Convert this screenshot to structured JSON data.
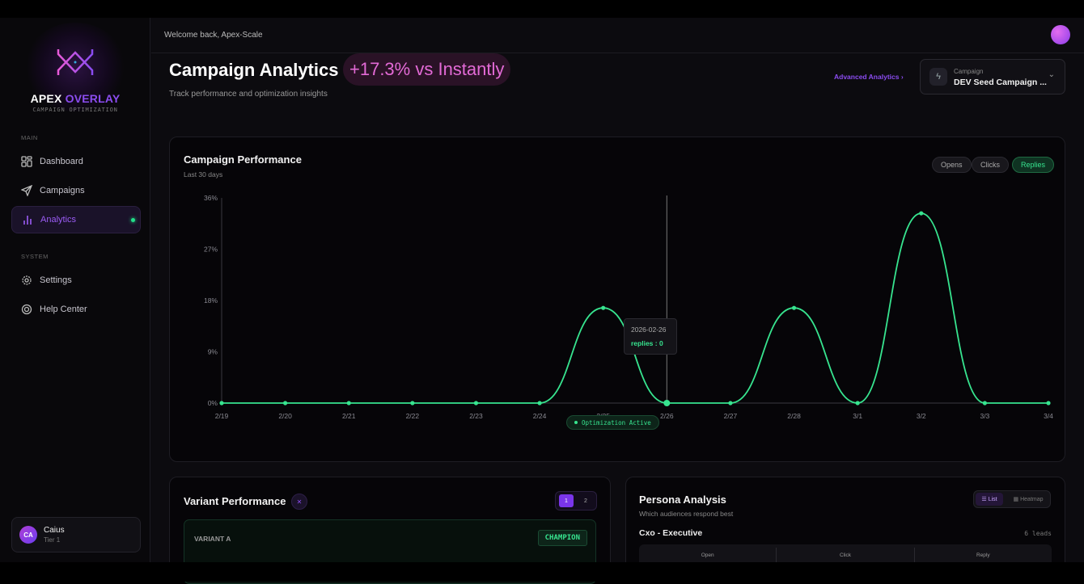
{
  "sidebar": {
    "brand_a": "APEX",
    "brand_b": "OVERLAY",
    "tagline": "CAMPAIGN OPTIMIZATION",
    "sec_main": "MAIN",
    "sec_system": "SYSTEM",
    "items": [
      {
        "label": "Dashboard"
      },
      {
        "label": "Campaigns"
      },
      {
        "label": "Analytics"
      },
      {
        "label": "Settings"
      },
      {
        "label": "Help Center"
      }
    ],
    "user": {
      "initials": "CA",
      "name": "Caius",
      "tier": "Tier 1"
    }
  },
  "topbar": {
    "welcome": "Welcome back, Apex-Scale"
  },
  "header": {
    "title": "Campaign Analytics",
    "badge": "+17.3% vs Instantly",
    "subtitle": "Track performance and optimization insights",
    "advanced_link": "Advanced Analytics ›",
    "campaign_label": "Campaign",
    "campaign_value": "DEV Seed Campaign ..."
  },
  "performance": {
    "title": "Campaign Performance",
    "subtitle": "Last 30 days",
    "toggles": [
      "Opens",
      "Clicks",
      "Replies"
    ],
    "active": "Replies",
    "tooltip": {
      "date": "2026-02-26",
      "text": "replies : 0"
    },
    "status": "Optimization Active"
  },
  "chart_data": {
    "type": "line",
    "series_name": "replies",
    "accent": "#37e48f",
    "categories": [
      "2/19",
      "2/20",
      "2/21",
      "2/22",
      "2/23",
      "2/24",
      "2/25",
      "2/26",
      "2/27",
      "2/28",
      "3/1",
      "3/2",
      "3/3",
      "3/4"
    ],
    "values": [
      0,
      0,
      0,
      0,
      0,
      0,
      16.7,
      0,
      0,
      16.7,
      0,
      33.3,
      0,
      0
    ],
    "yticks": [
      "0%",
      "9%",
      "18%",
      "27%",
      "36%"
    ],
    "ylim": [
      0,
      36
    ],
    "hover_index": 7
  },
  "variants": {
    "title": "Variant Performance",
    "pages": [
      "1",
      "2"
    ],
    "variant_label": "VARIANT A",
    "badge": "CHAMPION"
  },
  "persona": {
    "title": "Persona Analysis",
    "subtitle": "Which audiences respond best",
    "view_list": "List",
    "view_heatmap": "Heatmap",
    "row_name": "Cxo - Executive",
    "row_leads": "6 leads",
    "cols": [
      "Open",
      "Click",
      "Reply"
    ]
  }
}
